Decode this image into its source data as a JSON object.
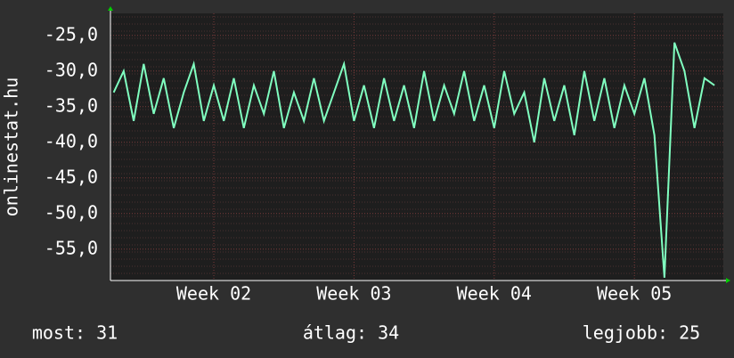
{
  "chart_data": {
    "type": "line",
    "y_label": "onlinestat.hu",
    "x": [
      2,
      2.5,
      3,
      3.5,
      4,
      4.5,
      5,
      5.5,
      6,
      6.5,
      7,
      7.5,
      8,
      8.5,
      9,
      9.5,
      10,
      10.5,
      11,
      11.5,
      12,
      12.5,
      13,
      13.5,
      14,
      14.5,
      15,
      15.5,
      16,
      16.5,
      17,
      17.5,
      18,
      18.5,
      19,
      19.5,
      20,
      20.5,
      21,
      21.5,
      22,
      22.5,
      23,
      23.5,
      24,
      24.5,
      25,
      25.5,
      26,
      26.5,
      27,
      27.5,
      28,
      28.5,
      29,
      29.5,
      30,
      30.5,
      31,
      31.5,
      32
    ],
    "series": [
      {
        "color": "#80ffc0",
        "values": [
          -33,
          -30,
          -37,
          -29,
          -36,
          -31,
          -38,
          -33,
          -29,
          -37,
          -32,
          -37,
          -31,
          -38,
          -32,
          -36,
          -30,
          -38,
          -33,
          -37,
          -31,
          -37,
          -33,
          -29,
          -37,
          -32,
          -38,
          -31,
          -37,
          -32,
          -38,
          -30,
          -37,
          -32,
          -36,
          -30,
          -37,
          -32,
          -38,
          -30,
          -36,
          -33,
          -40,
          -31,
          -37,
          -32,
          -39,
          -30,
          -37,
          -31,
          -38,
          -32,
          -36,
          -31,
          -39,
          -59,
          -26,
          -30,
          -38,
          -31,
          -32
        ]
      }
    ],
    "xlim": [
      1.84,
      32.44
    ],
    "xticks": [
      {
        "value": 7,
        "label": "Week 02"
      },
      {
        "value": 14,
        "label": "Week 03"
      },
      {
        "value": 21,
        "label": "Week 04"
      },
      {
        "value": 28,
        "label": "Week 05"
      }
    ],
    "ylim": [
      -59.4,
      -21.9
    ],
    "yticks": [
      {
        "value": -25,
        "label": "-25,0"
      },
      {
        "value": -30,
        "label": "-30,0"
      },
      {
        "value": -35,
        "label": "-35,0"
      },
      {
        "value": -40,
        "label": "-40,0"
      },
      {
        "value": -45,
        "label": "-45,0"
      },
      {
        "value": -50,
        "label": "-50,0"
      },
      {
        "value": -55,
        "label": "-55,0"
      }
    ],
    "grid": true,
    "footer": [
      "most: 31",
      "átlag: 34",
      "legjobb: 25"
    ]
  }
}
